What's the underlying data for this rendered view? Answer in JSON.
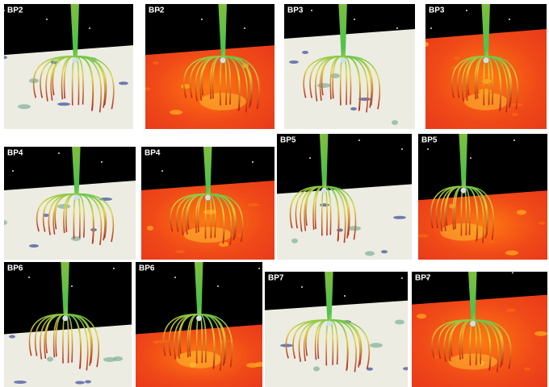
{
  "panels": [
    {
      "label": "BP2"
    },
    {
      "label": "BP2"
    },
    {
      "label": "BP3"
    },
    {
      "label": "BP3"
    },
    {
      "label": "BP4"
    },
    {
      "label": "BP4"
    },
    {
      "label": "BP5"
    },
    {
      "label": "BP5"
    },
    {
      "label": "BP6"
    },
    {
      "label": "BP6"
    },
    {
      "label": "BP7"
    },
    {
      "label": "BP7"
    }
  ]
}
